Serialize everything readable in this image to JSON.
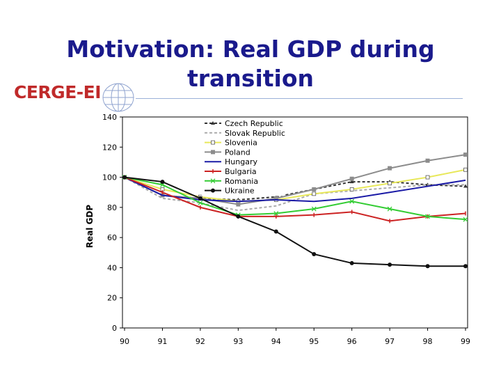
{
  "slide": {
    "title_line1": "Motivation: Real GDP during",
    "title_line2": "transition",
    "logo_text": "CERGE-EI",
    "accent_color": "#1a1a8c"
  },
  "chart_data": {
    "type": "line",
    "title": "",
    "xlabel": "",
    "ylabel": "Real GDP",
    "ylim": [
      0,
      140
    ],
    "yticks": [
      0,
      20,
      40,
      60,
      80,
      100,
      120,
      140
    ],
    "categories": [
      "90",
      "91",
      "92",
      "93",
      "94",
      "95",
      "96",
      "97",
      "98",
      "99"
    ],
    "grid": false,
    "legend_position": "top-center",
    "series": [
      {
        "name": "Czech Republic",
        "color": "#333333",
        "dash": "4,3",
        "marker": "triangle",
        "values": [
          100,
          88,
          86,
          85,
          87,
          92,
          97,
          97,
          95,
          94
        ]
      },
      {
        "name": "Slovak Republic",
        "color": "#aaaaaa",
        "dash": "4,3",
        "marker": "none",
        "values": [
          100,
          86,
          83,
          78,
          81,
          89,
          91,
          93,
          95,
          95
        ]
      },
      {
        "name": "Slovenia",
        "color": "#e8e85a",
        "dash": "",
        "marker": "square-open",
        "values": [
          100,
          92,
          87,
          84,
          85,
          89,
          92,
          96,
          100,
          105
        ]
      },
      {
        "name": "Poland",
        "color": "#8c8c8c",
        "dash": "",
        "marker": "square",
        "values": [
          100,
          88,
          86,
          82,
          86,
          92,
          99,
          106,
          111,
          115
        ]
      },
      {
        "name": "Hungary",
        "color": "#1a1aa6",
        "dash": "",
        "marker": "none",
        "values": [
          100,
          88,
          85,
          84,
          85,
          84,
          86,
          90,
          94,
          98
        ]
      },
      {
        "name": "Bulgaria",
        "color": "#cc2222",
        "dash": "",
        "marker": "dash",
        "values": [
          100,
          90,
          80,
          74,
          74,
          75,
          77,
          71,
          74,
          76
        ]
      },
      {
        "name": "Romania",
        "color": "#33cc33",
        "dash": "",
        "marker": "x",
        "values": [
          100,
          95,
          83,
          75,
          76,
          79,
          84,
          79,
          74,
          72
        ]
      },
      {
        "name": "Ukraine",
        "color": "#111111",
        "dash": "",
        "marker": "dot",
        "values": [
          100,
          97,
          86,
          74,
          64,
          49,
          43,
          42,
          41,
          41
        ]
      }
    ]
  }
}
